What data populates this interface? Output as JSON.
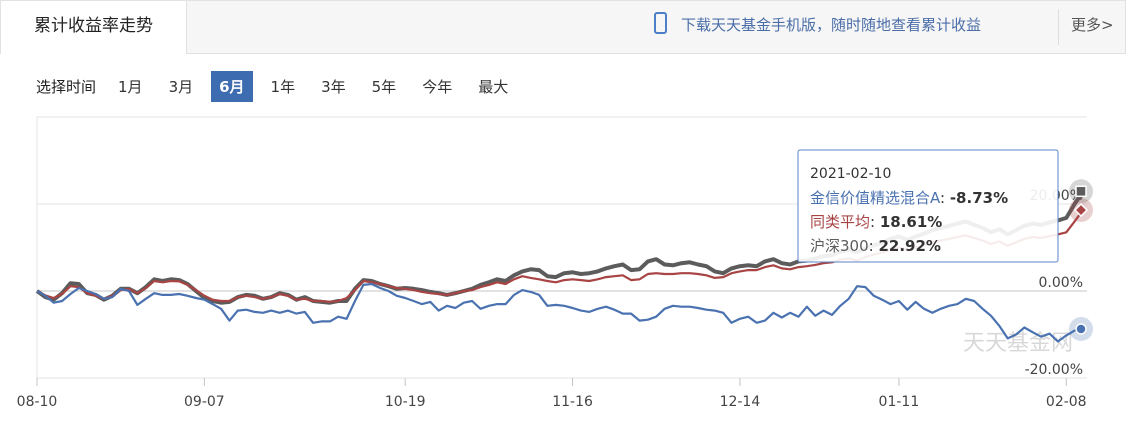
{
  "header": {
    "tab": "累计收益率走势",
    "promo": "下载天天基金手机版，随时随地查看累计收益",
    "more": "更多>"
  },
  "range_selector": {
    "label": "选择时间",
    "options": [
      "1月",
      "3月",
      "6月",
      "1年",
      "3年",
      "5年",
      "今年",
      "最大"
    ],
    "selected": 2
  },
  "watermark": "天天基金网",
  "chart_data": {
    "type": "line",
    "categories": [
      "08-10",
      null,
      null,
      null,
      null,
      null,
      null,
      null,
      null,
      null,
      null,
      null,
      null,
      null,
      null,
      null,
      null,
      null,
      null,
      null,
      "09-07",
      null,
      null,
      null,
      null,
      null,
      null,
      null,
      null,
      null,
      null,
      null,
      null,
      null,
      null,
      null,
      null,
      null,
      null,
      null,
      null,
      null,
      null,
      null,
      "10-19",
      null,
      null,
      null,
      null,
      null,
      null,
      null,
      null,
      null,
      null,
      null,
      null,
      null,
      null,
      null,
      null,
      null,
      null,
      null,
      "11-16",
      null,
      null,
      null,
      null,
      null,
      null,
      null,
      null,
      null,
      null,
      null,
      null,
      null,
      null,
      null,
      null,
      null,
      null,
      null,
      "12-14",
      null,
      null,
      null,
      null,
      null,
      null,
      null,
      null,
      null,
      null,
      null,
      null,
      null,
      null,
      null,
      null,
      null,
      null,
      "01-11",
      null,
      null,
      null,
      null,
      null,
      null,
      null,
      null,
      null,
      null,
      null,
      null,
      null,
      null,
      null,
      null,
      null,
      null,
      null,
      "02-08",
      null,
      null
    ],
    "series": [
      {
        "name": "金信价值精选混合A",
        "color": "#4a72b0",
        "marker": "circle",
        "values": [
          0,
          -1.1,
          -2.7,
          -2.3,
          -0.7,
          0.7,
          0,
          -0.7,
          -1.8,
          -1.4,
          0.5,
          0,
          -3.2,
          -1.8,
          -0.5,
          -0.9,
          -0.9,
          -0.7,
          -1.1,
          -1.6,
          -2,
          -3,
          -4.1,
          -6.8,
          -4.5,
          -4.3,
          -4.8,
          -5,
          -4.5,
          -5,
          -4.5,
          -5.2,
          -4.8,
          -7.3,
          -7,
          -7,
          -5.9,
          -6.4,
          -2.3,
          1.4,
          1.6,
          0.7,
          0,
          -1.1,
          -1.6,
          -2.3,
          -3,
          -2.5,
          -4.5,
          -3.4,
          -3.9,
          -2.7,
          -2.3,
          -4.1,
          -3.4,
          -3,
          -3,
          -0.9,
          0.2,
          -0.2,
          -0.9,
          -3.4,
          -3.2,
          -3.4,
          -3.9,
          -4.5,
          -4.8,
          -4.1,
          -3.6,
          -4.3,
          -5.2,
          -5.2,
          -6.8,
          -6.6,
          -5.9,
          -4.1,
          -3.4,
          -3.6,
          -3.6,
          -3.9,
          -4.3,
          -4.5,
          -5,
          -7.3,
          -6.4,
          -5.9,
          -7.3,
          -6.8,
          -5,
          -6.1,
          -5,
          -5.9,
          -3.6,
          -5.7,
          -4.5,
          -5.5,
          -3.4,
          -1.8,
          1.1,
          0.9,
          -1.1,
          -2,
          -3,
          -2.3,
          -4.3,
          -2.5,
          -4.1,
          -5,
          -4.1,
          -3.4,
          -3,
          -1.8,
          -2.3,
          -4.1,
          -5.7,
          -8,
          -10.9,
          -10,
          -8.4,
          -9.5,
          -10.5,
          -9.8,
          -11.6,
          -10.2,
          -9.1,
          -8.73
        ]
      },
      {
        "name": "同类平均",
        "color": "#a84444",
        "marker": "diamond",
        "values": [
          0,
          -1,
          -1.6,
          -0.7,
          1.1,
          0.9,
          -0.5,
          -1.1,
          -1.8,
          -1.1,
          0.2,
          0.5,
          -0.5,
          0.7,
          2.3,
          2,
          2.3,
          2.2,
          1.4,
          0.2,
          -1.1,
          -2,
          -2.3,
          -2.3,
          -1.4,
          -1.1,
          -1.4,
          -1.8,
          -1.4,
          -0.7,
          -1.1,
          -2,
          -1.8,
          -2.3,
          -2.3,
          -2.5,
          -2.3,
          -1.6,
          0.2,
          2.3,
          2,
          1.6,
          1.1,
          0.7,
          0.5,
          0.2,
          -0.2,
          -0.5,
          -0.7,
          -0.9,
          -0.5,
          0,
          0.2,
          0.9,
          1.4,
          2,
          1.6,
          2.7,
          3.4,
          3,
          2.7,
          2.3,
          2,
          2.5,
          2.7,
          2.5,
          2.3,
          2.7,
          3.2,
          3.4,
          3.6,
          2.5,
          2.7,
          3.9,
          4.1,
          3.9,
          3.9,
          4.1,
          4.1,
          3.9,
          3.6,
          3,
          3.2,
          4.1,
          4.5,
          4.8,
          4.8,
          5.5,
          5.9,
          5.2,
          5,
          5.5,
          5.7,
          6,
          6.4,
          6.6,
          7.2,
          7.5,
          7,
          7.8,
          8.4,
          8.8,
          9.6,
          10,
          9.4,
          10,
          10.5,
          11.2,
          11.6,
          12,
          12.4,
          12.8,
          12.2,
          11.6,
          10.8,
          11.4,
          10.4,
          11.2,
          12,
          12.4,
          12.2,
          12.6,
          13,
          13.5,
          16,
          18.61
        ]
      },
      {
        "name": "沪深300",
        "color": "#5c5c5c",
        "marker": "square",
        "values": [
          0,
          -1.4,
          -2,
          -0.5,
          1.8,
          1.6,
          -0.5,
          -0.9,
          -2,
          -1.1,
          0.5,
          0.5,
          -0.5,
          0.9,
          2.7,
          2.3,
          2.7,
          2.5,
          1.6,
          0,
          -1.6,
          -2.3,
          -2.7,
          -2.5,
          -1.4,
          -0.9,
          -1.1,
          -1.8,
          -1.4,
          -0.5,
          -0.9,
          -2,
          -1.4,
          -2.3,
          -2.5,
          -2.7,
          -2.3,
          -2.3,
          0.5,
          2.5,
          2.3,
          1.6,
          1.1,
          0.5,
          0.7,
          0.5,
          0.2,
          -0.2,
          -0.5,
          -0.9,
          -0.5,
          0,
          0.5,
          1.4,
          2,
          2.7,
          2.3,
          3.6,
          4.5,
          5,
          4.8,
          3.4,
          3.2,
          4.1,
          4.3,
          3.9,
          4.1,
          4.5,
          5.2,
          5.7,
          6.1,
          4.8,
          5,
          6.8,
          7.3,
          6.1,
          5.9,
          6.4,
          6.6,
          6.1,
          5.7,
          4.5,
          4.1,
          5.2,
          5.7,
          5.9,
          5.7,
          6.8,
          7.3,
          6.4,
          6.1,
          6.8,
          7,
          7.5,
          8,
          8.2,
          9,
          9.5,
          8.9,
          9.8,
          10.5,
          11,
          12,
          12.5,
          11.8,
          12.5,
          13.2,
          14,
          14.5,
          15,
          15.5,
          16,
          15.2,
          14.5,
          13.5,
          14.2,
          13,
          14,
          15,
          15.5,
          15.2,
          15.8,
          16.2,
          16.8,
          20,
          22.92
        ]
      }
    ],
    "ylim": [
      -20,
      40
    ],
    "yticks": [
      {
        "value": -20,
        "label": "-20.00%"
      },
      {
        "value": 0,
        "label": "0.00%"
      },
      {
        "value": 20,
        "label": "20.00%"
      }
    ],
    "grid": true,
    "tooltip": {
      "date": "2021-02-10",
      "entries": [
        "-8.73%",
        "18.61%",
        "22.92%"
      ]
    }
  }
}
